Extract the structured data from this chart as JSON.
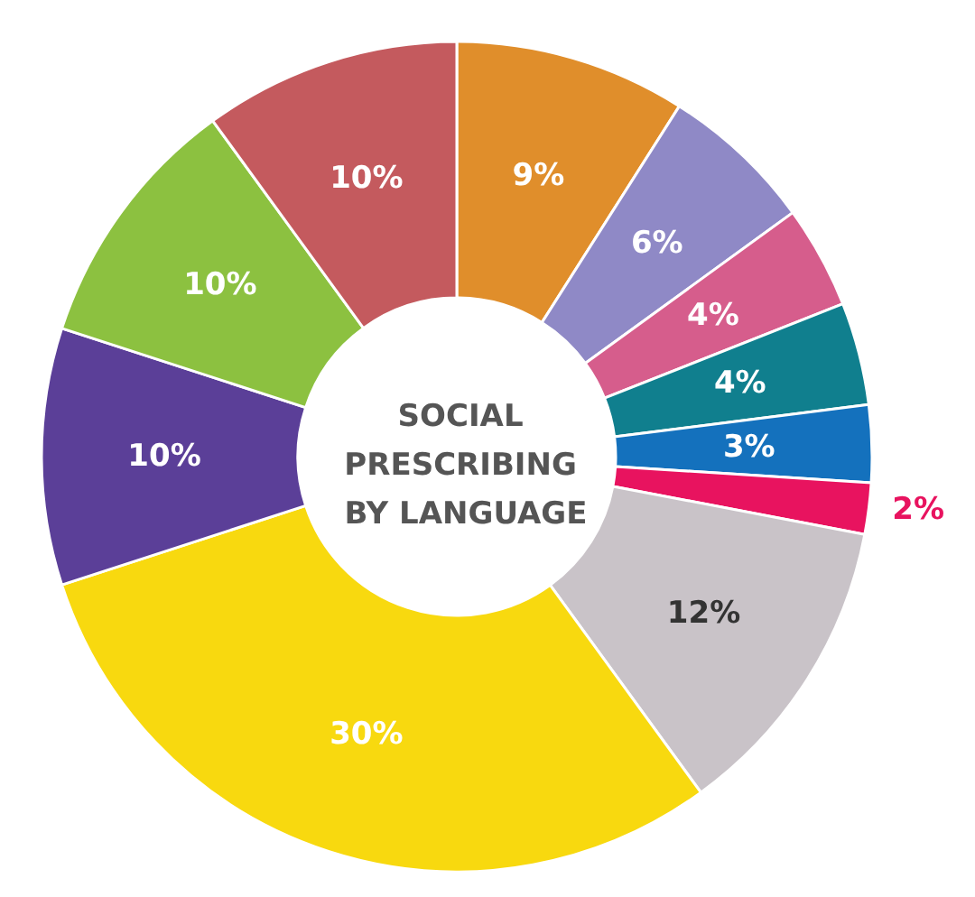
{
  "chart_data": {
    "type": "donut",
    "title": "SOCIAL PRESCRIBING BY LANGUAGE",
    "categories": [
      null,
      null,
      null,
      null,
      null,
      null,
      null,
      null,
      null,
      null,
      null
    ],
    "values": [
      9,
      6,
      4,
      4,
      3,
      2,
      12,
      30,
      10,
      10,
      10
    ],
    "value_labels": [
      "9%",
      "6%",
      "4%",
      "4%",
      "3%",
      "2%",
      "12%",
      "30%",
      "10%",
      "10%",
      "10%"
    ],
    "colors": [
      "#e08e2b",
      "#8f89c6",
      "#d65d8c",
      "#107f8e",
      "#1471bd",
      "#e8135f",
      "#c9c3c8",
      "#f8d90f",
      "#5b3f98",
      "#8cc140",
      "#c45a5e"
    ]
  }
}
